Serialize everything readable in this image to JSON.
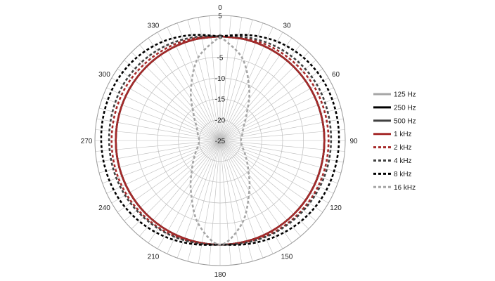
{
  "chart_data": {
    "type": "polar-line",
    "radial_axis": {
      "min": -25,
      "max": 5,
      "ticks": [
        5,
        0,
        -5,
        -10,
        -15,
        -20,
        -25
      ],
      "tick_labels": [
        "5",
        "0",
        "-5",
        "-10",
        "-15",
        "-20",
        "-25"
      ]
    },
    "angular_axis": {
      "direction": "clockwise",
      "zero_at": "top",
      "gridline_step_deg": 5,
      "label_angles": [
        0,
        30,
        60,
        90,
        120,
        150,
        180,
        210,
        240,
        270,
        300,
        330
      ],
      "labels": [
        "0",
        "30",
        "60",
        "90",
        "120",
        "150",
        "180",
        "210",
        "240",
        "270",
        "300",
        "330"
      ]
    },
    "angles": [
      0,
      15,
      30,
      45,
      60,
      75,
      90,
      105,
      120,
      135,
      150,
      165,
      180
    ],
    "mirror_side": "left",
    "legend_position": "right",
    "series": [
      {
        "name": "125 Hz",
        "color": "#a6a6a6",
        "dash": "solid",
        "values": [
          0,
          0,
          0,
          0,
          0,
          0,
          0,
          0,
          0,
          0,
          0,
          0,
          0
        ]
      },
      {
        "name": "250 Hz",
        "color": "#000000",
        "dash": "solid",
        "values": [
          0,
          0,
          0,
          0,
          0,
          0,
          0,
          0,
          0,
          0,
          0,
          0,
          0
        ]
      },
      {
        "name": "500 Hz",
        "color": "#404040",
        "dash": "solid",
        "values": [
          0,
          0,
          0,
          0,
          0,
          0,
          0,
          0,
          0,
          0,
          0,
          0,
          0
        ]
      },
      {
        "name": "1 kHz",
        "color": "#a52a2a",
        "dash": "solid",
        "values": [
          0,
          0,
          0,
          0,
          0,
          0,
          0,
          0,
          0,
          0,
          0,
          0,
          0
        ]
      },
      {
        "name": "2 kHz",
        "color": "#a52a2a",
        "dash": "dash",
        "values": [
          0,
          0.3,
          0.6,
          0.8,
          1,
          1,
          1,
          1,
          0.9,
          0.7,
          0.5,
          0.2,
          0
        ]
      },
      {
        "name": "4 kHz",
        "color": "#404040",
        "dash": "dash",
        "values": [
          0,
          0.6,
          1.2,
          1.6,
          1.8,
          1.7,
          1.6,
          1.5,
          1.3,
          1,
          0.7,
          0.3,
          0
        ]
      },
      {
        "name": "8 kHz",
        "color": "#000000",
        "dash": "dash",
        "values": [
          0,
          1.2,
          2.4,
          3.2,
          3.6,
          3.6,
          3.5,
          3.3,
          3,
          2.4,
          1.6,
          0.7,
          0
        ]
      },
      {
        "name": "16 kHz",
        "color": "#a6a6a6",
        "dash": "dash",
        "values": [
          0,
          -4.5,
          -11,
          -16,
          -18.5,
          -19.5,
          -20,
          -19.5,
          -18,
          -15.5,
          -11,
          -4.5,
          0
        ]
      }
    ]
  }
}
